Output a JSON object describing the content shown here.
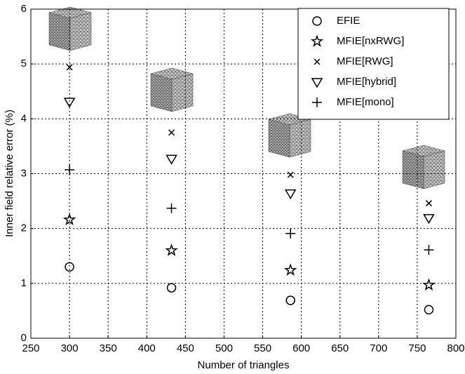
{
  "chart_data": {
    "type": "scatter",
    "x_label": "Number of triangles",
    "y_label": "Inner field relative error (%)",
    "x": [
      300,
      432,
      586,
      765
    ],
    "series": [
      {
        "name": "EFIE",
        "marker": "circle",
        "color": "#000000",
        "values": [
          1.3,
          0.92,
          0.69,
          0.52
        ]
      },
      {
        "name": "MFIE[nxRWG]",
        "marker": "star",
        "color": "#000000",
        "values": [
          2.16,
          1.6,
          1.24,
          0.97
        ]
      },
      {
        "name": "MFIE[RWG]",
        "marker": "x",
        "color": "#000000",
        "values": [
          4.94,
          3.75,
          2.98,
          2.46
        ]
      },
      {
        "name": "MFIE[hybrid]",
        "marker": "triangle-down",
        "color": "#000000",
        "values": [
          4.31,
          3.27,
          2.64,
          2.19
        ]
      },
      {
        "name": "MFIE[mono]",
        "marker": "plus",
        "color": "#000000",
        "values": [
          3.07,
          2.37,
          1.91,
          1.61
        ]
      }
    ],
    "xlim": [
      250,
      800
    ],
    "xticks": [
      250,
      300,
      350,
      400,
      450,
      500,
      550,
      600,
      650,
      700,
      750,
      800
    ],
    "ylim": [
      0,
      6
    ],
    "yticks": [
      0,
      1,
      2,
      3,
      4,
      5,
      6
    ],
    "grid": true,
    "legend": "upper right"
  }
}
